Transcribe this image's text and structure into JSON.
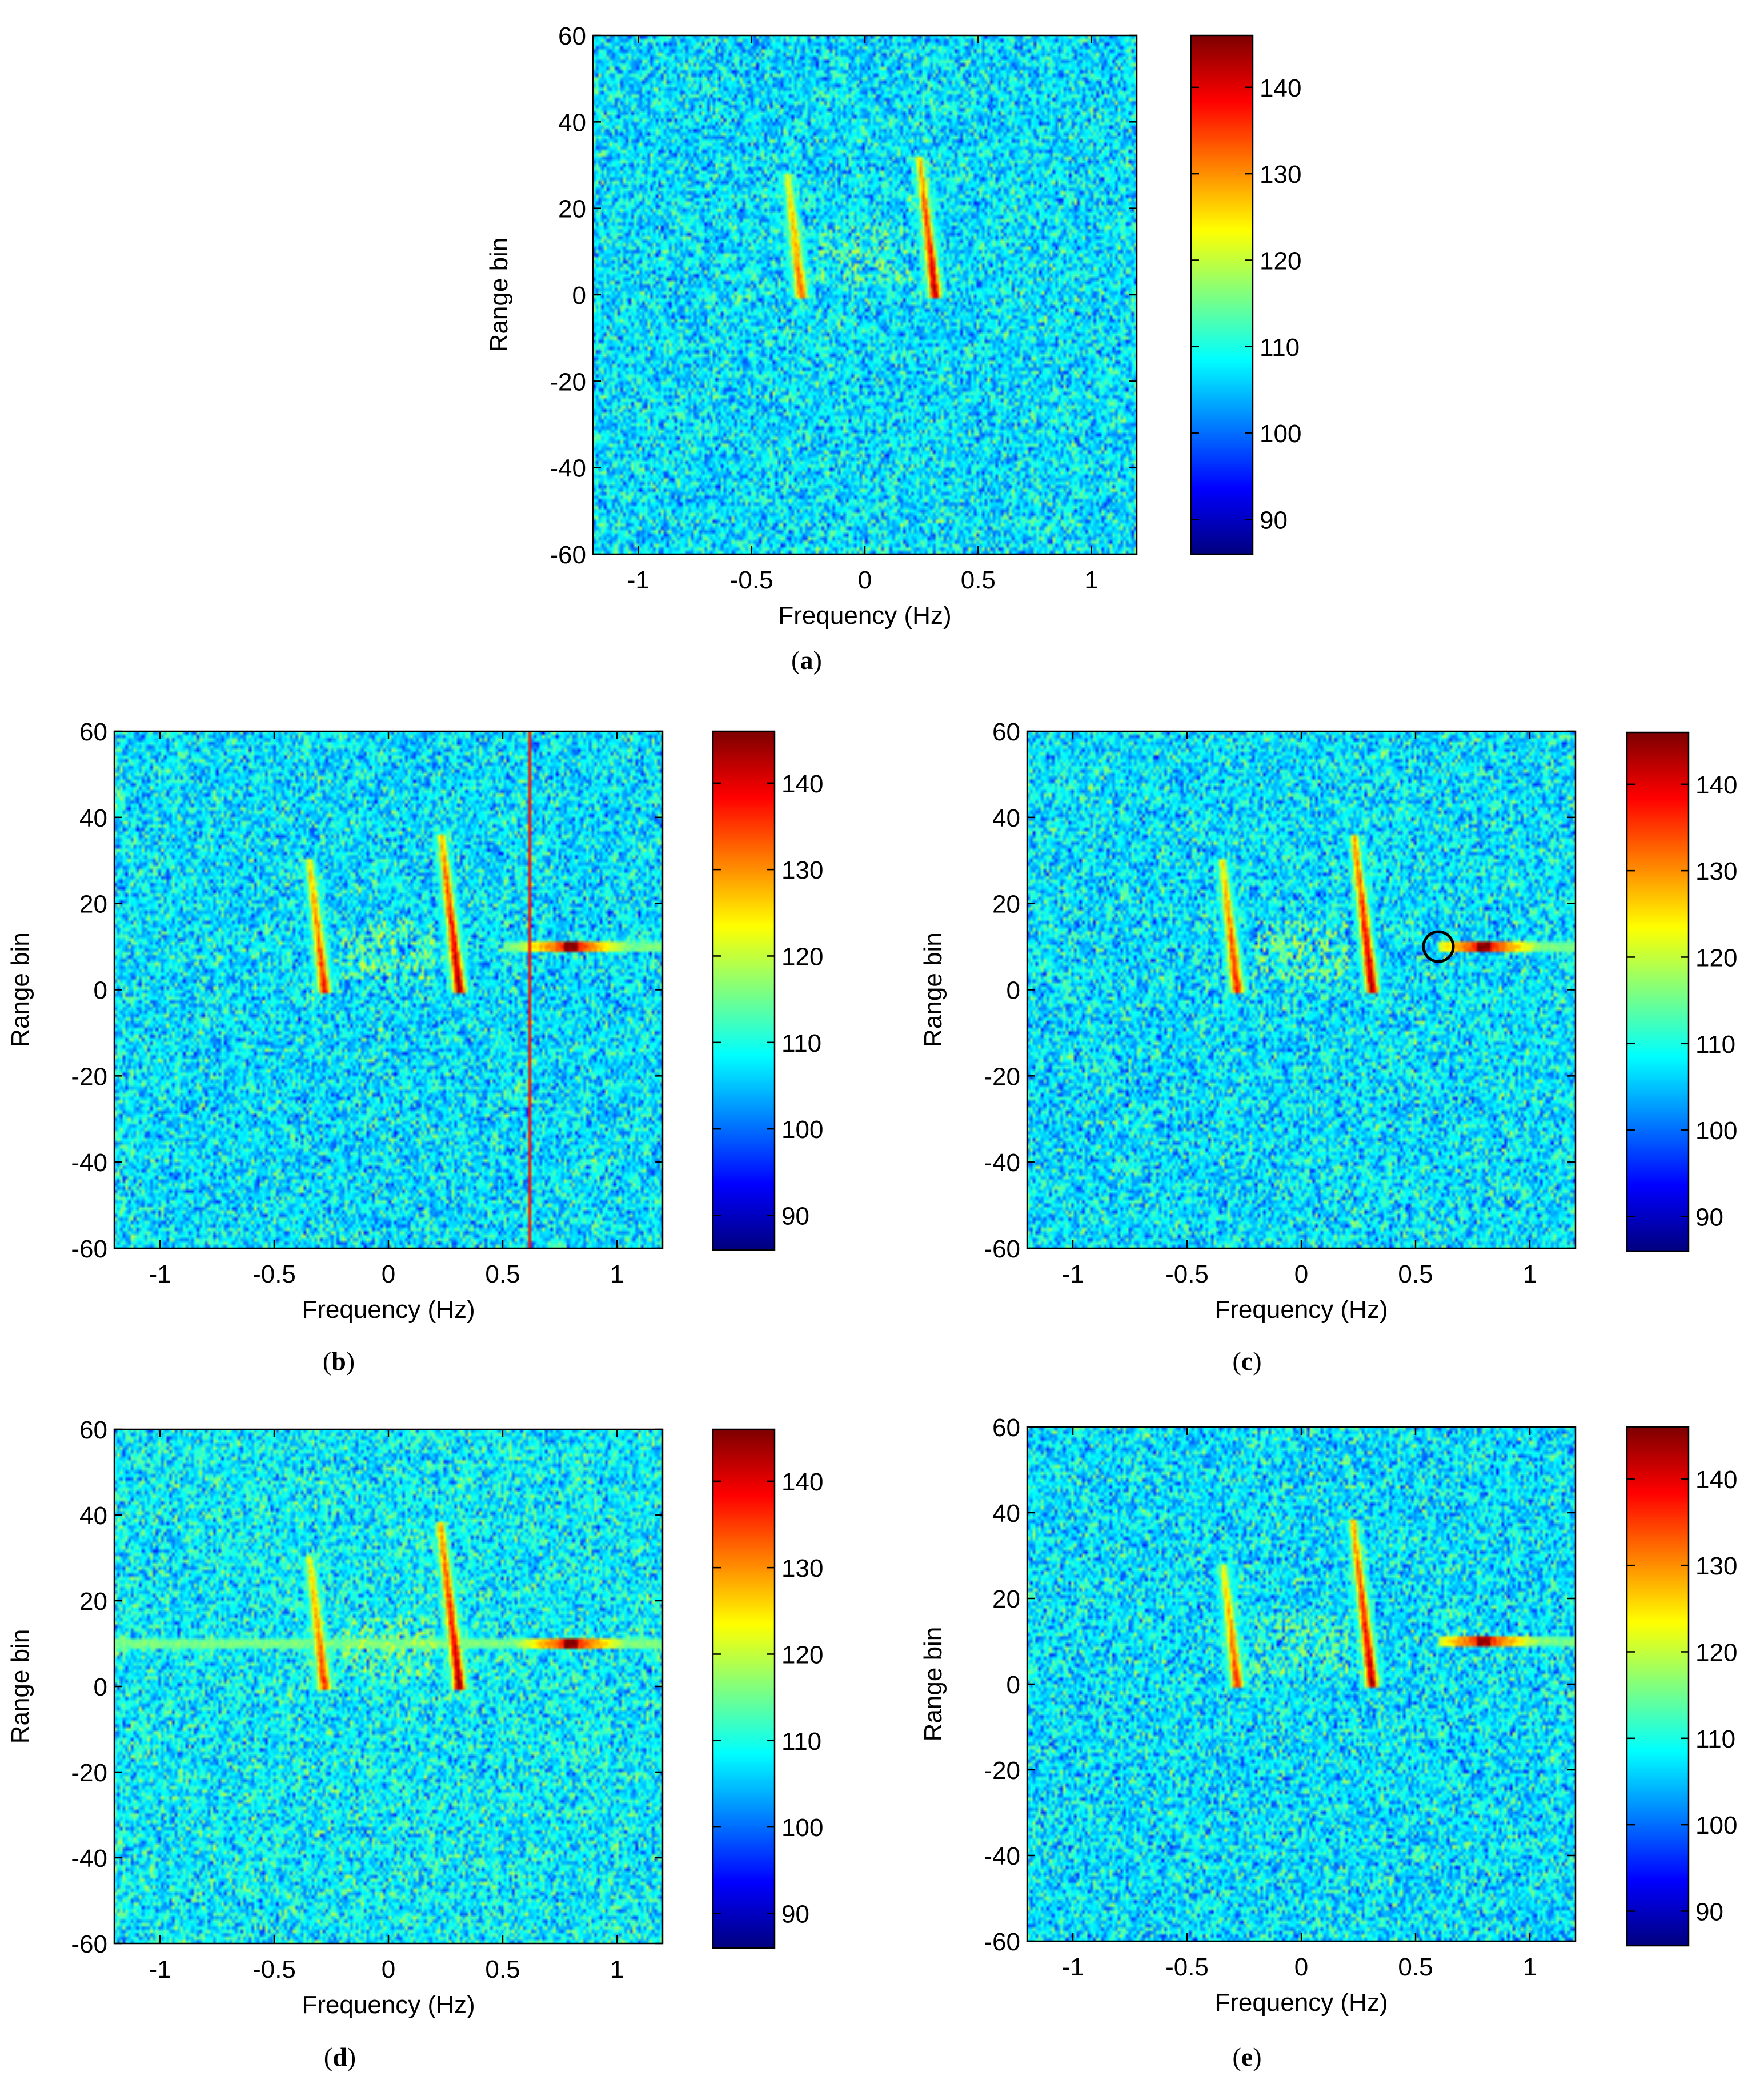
{
  "chart_data": [
    {
      "id": "a",
      "type": "heatmap",
      "caption_letter": "a",
      "xlabel": "Frequency (Hz)",
      "ylabel": "Range bin",
      "xlim": [
        -1.2,
        1.2
      ],
      "ylim": [
        -60,
        60
      ],
      "xticks": [
        -1,
        -0.5,
        0,
        0.5,
        1
      ],
      "xtick_labels": [
        "-1",
        "-0.5",
        "0",
        "0.5",
        "1"
      ],
      "yticks": [
        60,
        40,
        20,
        0,
        -20,
        -40,
        -60
      ],
      "ytick_labels": [
        "60",
        "40",
        "20",
        "0",
        "-20",
        "-40",
        "-60"
      ],
      "colorbar": {
        "range": [
          86,
          146
        ],
        "ticks": [
          90,
          100,
          110,
          120,
          130,
          140
        ],
        "tick_labels": [
          "90",
          "100",
          "110",
          "120",
          "130",
          "140"
        ],
        "colormap": "jet"
      },
      "noise_level": 107,
      "features": [
        {
          "kind": "vertical_streak",
          "freq": -0.28,
          "range_from": 0,
          "range_to": 28,
          "peak": 134
        },
        {
          "kind": "vertical_streak",
          "freq": 0.31,
          "range_from": 0,
          "range_to": 32,
          "peak": 143
        },
        {
          "kind": "speckle_cluster",
          "freq_from": -0.2,
          "freq_to": 0.2,
          "range_from": 2,
          "range_to": 16,
          "peak": 121
        }
      ]
    },
    {
      "id": "b",
      "type": "heatmap",
      "caption_letter": "b",
      "xlabel": "Frequency (Hz)",
      "ylabel": "Range bin",
      "xlim": [
        -1.2,
        1.2
      ],
      "ylim": [
        -60,
        60
      ],
      "xticks": [
        -1,
        -0.5,
        0,
        0.5,
        1
      ],
      "xtick_labels": [
        "-1",
        "-0.5",
        "0",
        "0.5",
        "1"
      ],
      "yticks": [
        60,
        40,
        20,
        0,
        -20,
        -40,
        -60
      ],
      "ytick_labels": [
        "60",
        "40",
        "20",
        "0",
        "-20",
        "-40",
        "-60"
      ],
      "colorbar": {
        "range": [
          86,
          146
        ],
        "ticks": [
          90,
          100,
          110,
          120,
          130,
          140
        ],
        "tick_labels": [
          "90",
          "100",
          "110",
          "120",
          "130",
          "140"
        ],
        "colormap": "jet"
      },
      "noise_level": 107,
      "features": [
        {
          "kind": "vertical_streak",
          "freq": -0.28,
          "range_from": 0,
          "range_to": 30,
          "peak": 138
        },
        {
          "kind": "vertical_streak",
          "freq": 0.31,
          "range_from": 0,
          "range_to": 36,
          "peak": 145
        },
        {
          "kind": "speckle_cluster",
          "freq_from": -0.2,
          "freq_to": 0.2,
          "range_from": 2,
          "range_to": 16,
          "peak": 122
        },
        {
          "kind": "horizontal_line",
          "range": 10,
          "freq_from": 0.5,
          "freq_to": 1.2,
          "peak": 146,
          "peak_freq": 0.8
        },
        {
          "kind": "full_vertical_line",
          "freq": 0.62,
          "peak": 138
        }
      ]
    },
    {
      "id": "c",
      "type": "heatmap",
      "caption_letter": "c",
      "xlabel": "Frequency (Hz)",
      "ylabel": "Range bin",
      "xlim": [
        -1.2,
        1.2
      ],
      "ylim": [
        -60,
        60
      ],
      "xticks": [
        -1,
        -0.5,
        0,
        0.5,
        1
      ],
      "xtick_labels": [
        "-1",
        "-0.5",
        "0",
        "0.5",
        "1"
      ],
      "yticks": [
        60,
        40,
        20,
        0,
        -20,
        -40,
        -60
      ],
      "ytick_labels": [
        "60",
        "40",
        "20",
        "0",
        "-20",
        "-40",
        "-60"
      ],
      "colorbar": {
        "range": [
          86,
          146
        ],
        "ticks": [
          90,
          100,
          110,
          120,
          130,
          140
        ],
        "tick_labels": [
          "90",
          "100",
          "110",
          "120",
          "130",
          "140"
        ],
        "colormap": "jet"
      },
      "noise_level": 107,
      "features": [
        {
          "kind": "vertical_streak",
          "freq": -0.28,
          "range_from": 0,
          "range_to": 30,
          "peak": 138
        },
        {
          "kind": "vertical_streak",
          "freq": 0.31,
          "range_from": 0,
          "range_to": 36,
          "peak": 145
        },
        {
          "kind": "speckle_cluster",
          "freq_from": -0.2,
          "freq_to": 0.2,
          "range_from": 2,
          "range_to": 16,
          "peak": 122
        },
        {
          "kind": "horizontal_line",
          "range": 10,
          "freq_from": 0.6,
          "freq_to": 1.2,
          "peak": 146,
          "peak_freq": 0.8
        }
      ],
      "annotation": {
        "kind": "circle",
        "freq": 0.6,
        "range": 10
      }
    },
    {
      "id": "d",
      "type": "heatmap",
      "caption_letter": "d",
      "xlabel": "Frequency (Hz)",
      "ylabel": "Range bin",
      "xlim": [
        -1.2,
        1.2
      ],
      "ylim": [
        -60,
        60
      ],
      "xticks": [
        -1,
        -0.5,
        0,
        0.5,
        1
      ],
      "xtick_labels": [
        "-1",
        "-0.5",
        "0",
        "0.5",
        "1"
      ],
      "yticks": [
        60,
        40,
        20,
        0,
        -20,
        -40,
        -60
      ],
      "ytick_labels": [
        "60",
        "40",
        "20",
        "0",
        "-20",
        "-40",
        "-60"
      ],
      "colorbar": {
        "range": [
          86,
          146
        ],
        "ticks": [
          90,
          100,
          110,
          120,
          130,
          140
        ],
        "tick_labels": [
          "90",
          "100",
          "110",
          "120",
          "130",
          "140"
        ],
        "colormap": "jet"
      },
      "noise_level": 108,
      "features": [
        {
          "kind": "vertical_streak",
          "freq": -0.28,
          "range_from": 0,
          "range_to": 30,
          "peak": 136
        },
        {
          "kind": "vertical_streak",
          "freq": 0.31,
          "range_from": 0,
          "range_to": 38,
          "peak": 145
        },
        {
          "kind": "speckle_cluster",
          "freq_from": -0.2,
          "freq_to": 0.2,
          "range_from": 2,
          "range_to": 16,
          "peak": 122
        },
        {
          "kind": "horizontal_line",
          "range": 10,
          "freq_from": -1.2,
          "freq_to": 1.2,
          "peak": 146,
          "peak_freq": 0.8
        }
      ]
    },
    {
      "id": "e",
      "type": "heatmap",
      "caption_letter": "e",
      "xlabel": "Frequency (Hz)",
      "ylabel": "Range bin",
      "xlim": [
        -1.2,
        1.2
      ],
      "ylim": [
        -60,
        60
      ],
      "xticks": [
        -1,
        -0.5,
        0,
        0.5,
        1
      ],
      "xtick_labels": [
        "-1",
        "-0.5",
        "0",
        "0.5",
        "1"
      ],
      "yticks": [
        60,
        40,
        20,
        0,
        -20,
        -40,
        -60
      ],
      "ytick_labels": [
        "60",
        "40",
        "20",
        "0",
        "-20",
        "-40",
        "-60"
      ],
      "colorbar": {
        "range": [
          86,
          146
        ],
        "ticks": [
          90,
          100,
          110,
          120,
          130,
          140
        ],
        "tick_labels": [
          "90",
          "100",
          "110",
          "120",
          "130",
          "140"
        ],
        "colormap": "jet"
      },
      "noise_level": 107,
      "features": [
        {
          "kind": "vertical_streak",
          "freq": -0.28,
          "range_from": 0,
          "range_to": 28,
          "peak": 136
        },
        {
          "kind": "vertical_streak",
          "freq": 0.31,
          "range_from": 0,
          "range_to": 38,
          "peak": 144
        },
        {
          "kind": "speckle_cluster",
          "freq_from": -0.2,
          "freq_to": 0.2,
          "range_from": 2,
          "range_to": 16,
          "peak": 121
        },
        {
          "kind": "horizontal_line",
          "range": 10,
          "freq_from": 0.6,
          "freq_to": 1.2,
          "peak": 145,
          "peak_freq": 0.8
        }
      ]
    }
  ]
}
